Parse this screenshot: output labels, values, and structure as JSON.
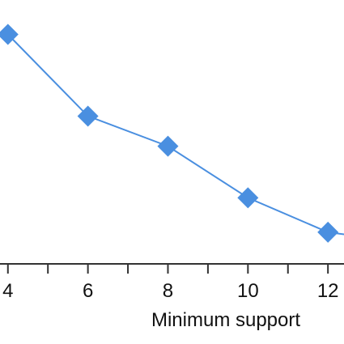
{
  "chart_data": {
    "type": "line",
    "title": "",
    "xlabel": "Minimum support",
    "ylabel": "",
    "x": [
      4,
      6,
      8,
      10,
      12
    ],
    "x_ticks": [
      4,
      6,
      8,
      10,
      12
    ],
    "x_tick_labels": [
      "4",
      "6",
      "8",
      "10",
      "12"
    ],
    "xlim": [
      3.6,
      12.3
    ],
    "series": [
      {
        "values": [
          0.72,
          0.53,
          0.46,
          0.34,
          0.26
        ],
        "color": "#4a8fe0",
        "marker": "diamond"
      }
    ],
    "ylim": [
      0,
      0.8
    ],
    "grid": false,
    "legend": "none"
  },
  "colors": {
    "line": "#4a8fe0",
    "axis": "#333333",
    "text": "#111111"
  }
}
